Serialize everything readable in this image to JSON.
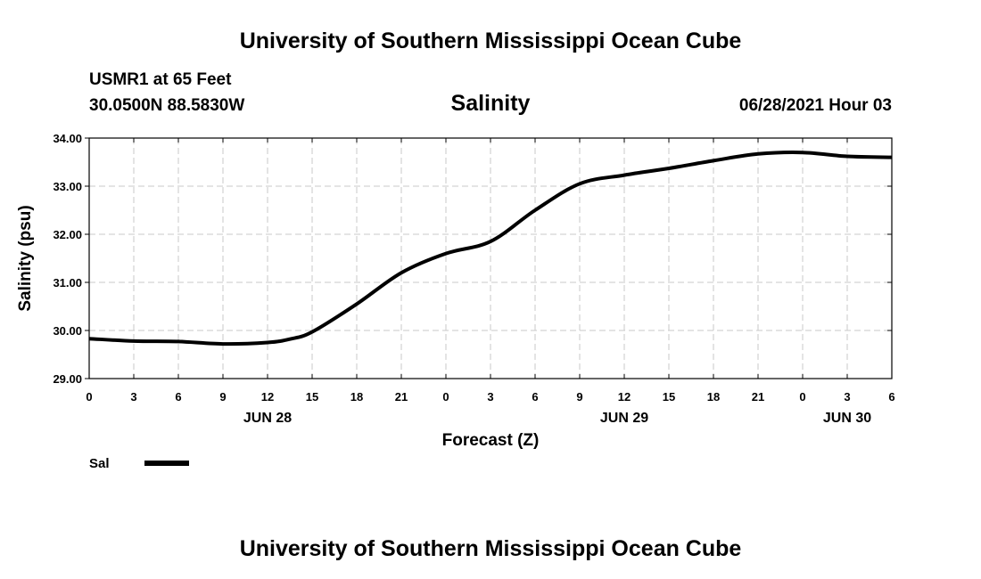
{
  "header": {
    "title": "University of Southern Mississippi Ocean Cube",
    "station": "USMR1 at 65 Feet",
    "coords": "30.0500N  88.5830W",
    "variable": "Salinity",
    "datetime": "06/28/2021 Hour 03"
  },
  "footer": {
    "title": "University of Southern Mississippi Ocean Cube"
  },
  "colors": {
    "line": "#000000",
    "grid": "#c8c8c8"
  },
  "chart_data": {
    "type": "line",
    "xlabel": "Forecast (Z)",
    "ylabel": "Salinity (psu)",
    "xlim": [
      0,
      54
    ],
    "ylim": [
      29.0,
      34.0
    ],
    "grid": true,
    "legend_placement": "bottom-left",
    "x_ticks": [
      0,
      3,
      6,
      9,
      12,
      15,
      18,
      21,
      24,
      27,
      30,
      33,
      36,
      39,
      42,
      45,
      48,
      51,
      54
    ],
    "x_tick_labels": [
      "0",
      "3",
      "6",
      "9",
      "12",
      "15",
      "18",
      "21",
      "0",
      "3",
      "6",
      "9",
      "12",
      "15",
      "18",
      "21",
      "0",
      "3",
      "6"
    ],
    "y_ticks": [
      29.0,
      30.0,
      31.0,
      32.0,
      33.0,
      34.0
    ],
    "y_tick_labels": [
      "29.00",
      "30.00",
      "31.00",
      "32.00",
      "33.00",
      "34.00"
    ],
    "date_labels": [
      {
        "x": 12,
        "label": "JUN 28"
      },
      {
        "x": 36,
        "label": "JUN 29"
      },
      {
        "x": 51,
        "label": "JUN 30"
      }
    ],
    "series": [
      {
        "name": "Sal",
        "x": [
          0,
          3,
          6,
          9,
          12,
          13.5,
          15,
          18,
          21,
          24,
          27,
          30,
          33,
          36,
          39,
          42,
          45,
          48,
          51,
          54
        ],
        "y": [
          29.83,
          29.78,
          29.77,
          29.72,
          29.75,
          29.82,
          29.97,
          30.55,
          31.2,
          31.6,
          31.85,
          32.5,
          33.05,
          33.23,
          33.37,
          33.53,
          33.67,
          33.7,
          33.62,
          33.6
        ]
      }
    ]
  }
}
